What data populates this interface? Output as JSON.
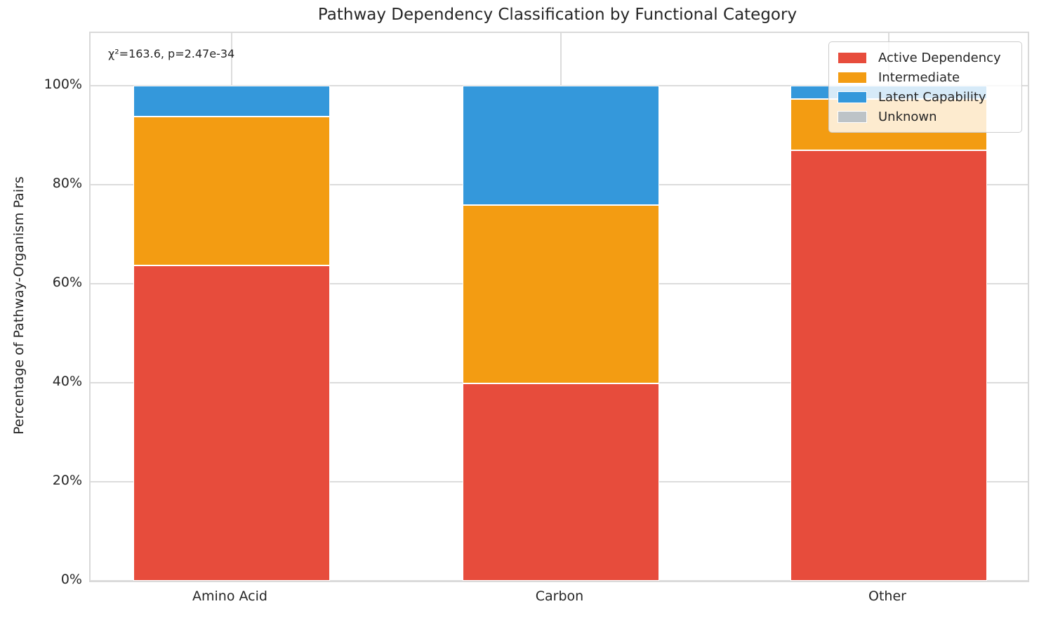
{
  "chart_data": {
    "type": "bar",
    "stacked": true,
    "title": "Pathway Dependency Classification by Functional Category",
    "xlabel": "",
    "ylabel": "Percentage of Pathway-Organism Pairs",
    "annotation": "χ²=163.6, p=2.47e-34",
    "categories": [
      "Amino Acid",
      "Carbon",
      "Other"
    ],
    "series": [
      {
        "name": "Active Dependency",
        "color": "#e74c3c",
        "values": [
          63.6,
          39.8,
          86.9
        ]
      },
      {
        "name": "Intermediate",
        "color": "#f39c12",
        "values": [
          30.1,
          36.0,
          10.3
        ]
      },
      {
        "name": "Latent Capability",
        "color": "#3498db",
        "values": [
          6.3,
          24.2,
          2.8
        ]
      },
      {
        "name": "Unknown",
        "color": "#bdc3c7",
        "values": [
          0.0,
          0.0,
          0.0
        ]
      }
    ],
    "y_ticks": [
      {
        "label": "0%",
        "value": 0
      },
      {
        "label": "20%",
        "value": 20
      },
      {
        "label": "40%",
        "value": 40
      },
      {
        "label": "60%",
        "value": 60
      },
      {
        "label": "80%",
        "value": 80
      },
      {
        "label": "100%",
        "value": 100
      }
    ],
    "ylim": [
      0,
      110.5
    ],
    "grid": true,
    "legend_position": "upper right",
    "style": {
      "text_color": "#262626",
      "grid_color": "#dcdcdc",
      "background": "#ffffff",
      "bar_edge_color": "#ffffff"
    }
  }
}
